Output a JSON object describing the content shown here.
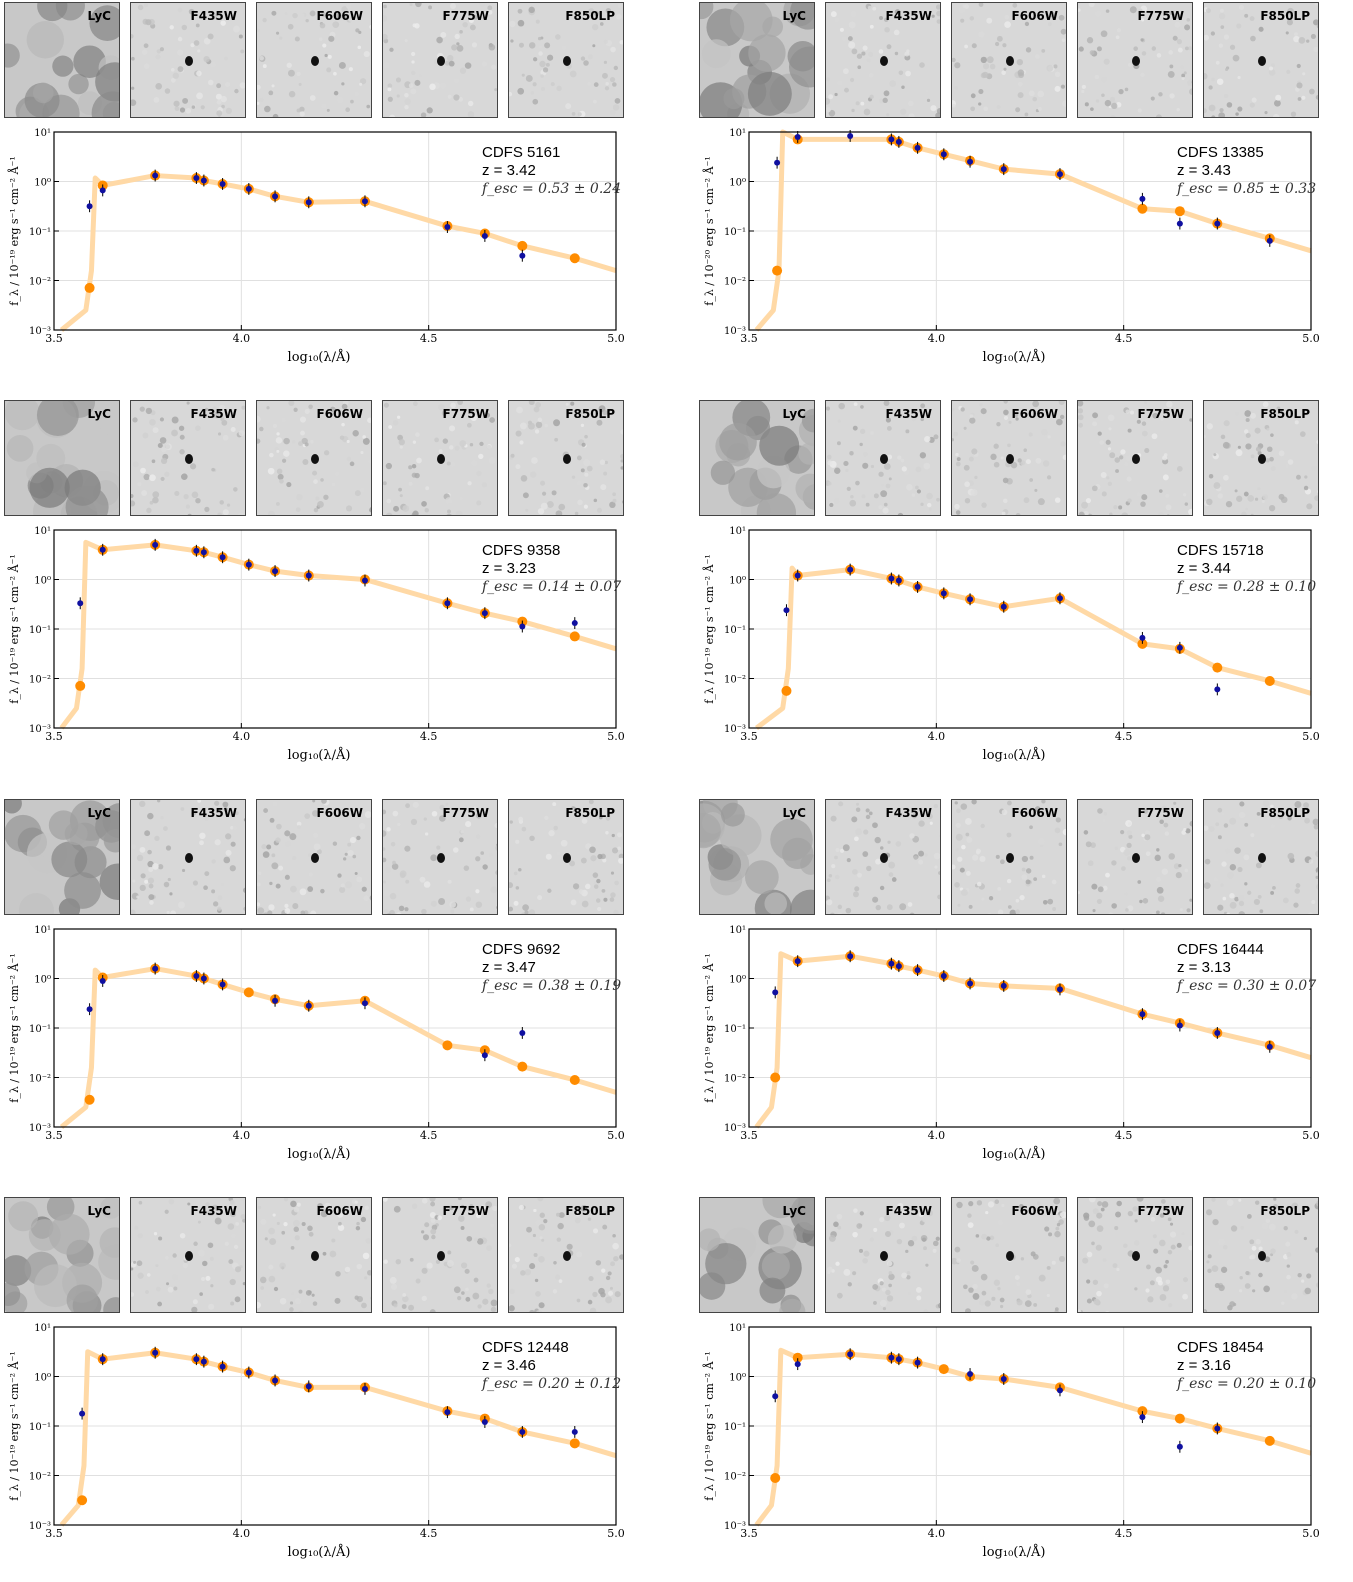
{
  "band_labels": [
    "LyC",
    "F435W",
    "F606W",
    "F775W",
    "F850LP"
  ],
  "axis": {
    "xlabel": "log₁₀(λ/Å)",
    "xticks": [
      "3.5",
      "4.0",
      "4.5",
      "5.0"
    ],
    "yticks": [
      "10¹",
      "10⁰",
      "10⁻¹",
      "10⁻²",
      "10⁻³"
    ]
  },
  "chart_data": [
    {
      "type": "scatter",
      "name": "CDFS 5161",
      "z": "z = 3.42",
      "fesc": "f_esc = 0.53 ± 0.24",
      "ylabel": "f_λ / 10⁻¹⁹ erg s⁻¹ cm⁻² Å⁻¹",
      "xlim": [
        3.5,
        5.0
      ],
      "ylim": [
        -3,
        1
      ],
      "obs": [
        [
          3.595,
          -0.5
        ],
        [
          3.63,
          -0.18
        ],
        [
          3.77,
          0.12
        ],
        [
          3.88,
          0.07
        ],
        [
          3.9,
          0.02
        ],
        [
          3.95,
          -0.05
        ],
        [
          4.02,
          -0.15
        ],
        [
          4.09,
          -0.3
        ],
        [
          4.18,
          -0.42
        ],
        [
          4.33,
          -0.4
        ],
        [
          4.55,
          -0.92
        ],
        [
          4.65,
          -1.1
        ],
        [
          4.75,
          -1.5
        ]
      ],
      "model": [
        [
          3.595,
          -2.15
        ],
        [
          3.63,
          -0.08
        ],
        [
          3.77,
          0.12
        ],
        [
          3.88,
          0.07
        ],
        [
          3.9,
          0.02
        ],
        [
          3.95,
          -0.05
        ],
        [
          4.02,
          -0.15
        ],
        [
          4.09,
          -0.3
        ],
        [
          4.18,
          -0.42
        ],
        [
          4.33,
          -0.4
        ],
        [
          4.55,
          -0.9
        ],
        [
          4.65,
          -1.05
        ],
        [
          4.75,
          -1.3
        ],
        [
          4.89,
          -1.55
        ]
      ]
    },
    {
      "type": "scatter",
      "name": "CDFS 13385",
      "z": "z = 3.43",
      "fesc": "f_esc = 0.85 ± 0.33",
      "ylabel": "f_λ / 10⁻²⁰ erg s⁻¹ cm⁻² Å⁻¹",
      "xlim": [
        3.5,
        5.0
      ],
      "ylim": [
        -3,
        1
      ],
      "obs": [
        [
          3.575,
          0.38
        ],
        [
          3.63,
          0.9
        ],
        [
          3.77,
          0.92
        ],
        [
          3.88,
          0.85
        ],
        [
          3.9,
          0.8
        ],
        [
          3.95,
          0.68
        ],
        [
          4.02,
          0.55
        ],
        [
          4.09,
          0.4
        ],
        [
          4.18,
          0.25
        ],
        [
          4.33,
          0.15
        ],
        [
          4.55,
          -0.35
        ],
        [
          4.65,
          -0.85
        ],
        [
          4.75,
          -0.85
        ],
        [
          4.89,
          -1.2
        ]
      ],
      "model": [
        [
          3.575,
          -1.8
        ],
        [
          3.63,
          0.85
        ],
        [
          3.88,
          0.85
        ],
        [
          3.9,
          0.8
        ],
        [
          3.95,
          0.68
        ],
        [
          4.02,
          0.55
        ],
        [
          4.09,
          0.42
        ],
        [
          4.18,
          0.25
        ],
        [
          4.33,
          0.15
        ],
        [
          4.55,
          -0.55
        ],
        [
          4.65,
          -0.6
        ],
        [
          4.75,
          -0.85
        ],
        [
          4.89,
          -1.15
        ]
      ]
    },
    {
      "type": "scatter",
      "name": "CDFS 9358",
      "z": "z = 3.23",
      "fesc": "f_esc = 0.14 ± 0.07",
      "ylabel": "f_λ / 10⁻¹⁹ erg s⁻¹ cm⁻² Å⁻¹",
      "xlim": [
        3.5,
        5.0
      ],
      "ylim": [
        -3,
        1
      ],
      "obs": [
        [
          3.57,
          -0.48
        ],
        [
          3.63,
          0.6
        ],
        [
          3.77,
          0.7
        ],
        [
          3.88,
          0.58
        ],
        [
          3.9,
          0.55
        ],
        [
          3.95,
          0.45
        ],
        [
          4.02,
          0.3
        ],
        [
          4.09,
          0.17
        ],
        [
          4.18,
          0.08
        ],
        [
          4.33,
          -0.02
        ],
        [
          4.55,
          -0.48
        ],
        [
          4.65,
          -0.68
        ],
        [
          4.75,
          -0.95
        ],
        [
          4.89,
          -0.88
        ]
      ],
      "model": [
        [
          3.57,
          -2.15
        ],
        [
          3.63,
          0.6
        ],
        [
          3.77,
          0.7
        ],
        [
          3.88,
          0.58
        ],
        [
          3.9,
          0.55
        ],
        [
          3.95,
          0.45
        ],
        [
          4.02,
          0.3
        ],
        [
          4.09,
          0.17
        ],
        [
          4.18,
          0.08
        ],
        [
          4.33,
          0.0
        ],
        [
          4.55,
          -0.48
        ],
        [
          4.65,
          -0.68
        ],
        [
          4.75,
          -0.85
        ],
        [
          4.89,
          -1.15
        ]
      ]
    },
    {
      "type": "scatter",
      "name": "CDFS 15718",
      "z": "z = 3.44",
      "fesc": "f_esc = 0.28 ± 0.10",
      "ylabel": "f_λ / 10⁻¹⁹ erg s⁻¹ cm⁻² Å⁻¹",
      "xlim": [
        3.5,
        5.0
      ],
      "ylim": [
        -3,
        1
      ],
      "obs": [
        [
          3.6,
          -0.62
        ],
        [
          3.63,
          0.08
        ],
        [
          3.77,
          0.2
        ],
        [
          3.88,
          0.02
        ],
        [
          3.9,
          -0.02
        ],
        [
          3.95,
          -0.15
        ],
        [
          4.02,
          -0.28
        ],
        [
          4.09,
          -0.4
        ],
        [
          4.18,
          -0.55
        ],
        [
          4.33,
          -0.38
        ],
        [
          4.55,
          -1.18
        ],
        [
          4.65,
          -1.38
        ],
        [
          4.75,
          -2.22
        ]
      ],
      "model": [
        [
          3.6,
          -2.25
        ],
        [
          3.63,
          0.08
        ],
        [
          3.77,
          0.2
        ],
        [
          3.88,
          0.02
        ],
        [
          3.9,
          -0.02
        ],
        [
          3.95,
          -0.15
        ],
        [
          4.02,
          -0.28
        ],
        [
          4.09,
          -0.4
        ],
        [
          4.18,
          -0.55
        ],
        [
          4.33,
          -0.38
        ],
        [
          4.55,
          -1.3
        ],
        [
          4.65,
          -1.4
        ],
        [
          4.75,
          -1.78
        ],
        [
          4.89,
          -2.05
        ]
      ]
    },
    {
      "type": "scatter",
      "name": "CDFS 9692",
      "z": "z = 3.47",
      "fesc": "f_esc = 0.38 ± 0.19",
      "ylabel": "f_λ / 10⁻¹⁹ erg s⁻¹ cm⁻² Å⁻¹",
      "xlim": [
        3.5,
        5.0
      ],
      "ylim": [
        -3,
        1
      ],
      "obs": [
        [
          3.595,
          -0.62
        ],
        [
          3.63,
          -0.05
        ],
        [
          3.77,
          0.2
        ],
        [
          3.88,
          0.05
        ],
        [
          3.9,
          0.0
        ],
        [
          3.95,
          -0.12
        ],
        [
          4.09,
          -0.45
        ],
        [
          4.18,
          -0.55
        ],
        [
          4.33,
          -0.5
        ],
        [
          4.65,
          -1.55
        ],
        [
          4.75,
          -1.1
        ]
      ],
      "model": [
        [
          3.595,
          -2.45
        ],
        [
          3.63,
          0.02
        ],
        [
          3.77,
          0.2
        ],
        [
          3.88,
          0.05
        ],
        [
          3.9,
          0.0
        ],
        [
          3.95,
          -0.12
        ],
        [
          4.02,
          -0.28
        ],
        [
          4.09,
          -0.42
        ],
        [
          4.18,
          -0.55
        ],
        [
          4.33,
          -0.45
        ],
        [
          4.55,
          -1.35
        ],
        [
          4.65,
          -1.45
        ],
        [
          4.75,
          -1.78
        ],
        [
          4.89,
          -2.05
        ]
      ]
    },
    {
      "type": "scatter",
      "name": "CDFS 16444",
      "z": "z = 3.13",
      "fesc": "f_esc = 0.30 ± 0.07",
      "ylabel": "f_λ / 10⁻¹⁹ erg s⁻¹ cm⁻² Å⁻¹",
      "xlim": [
        3.5,
        5.0
      ],
      "ylim": [
        -3,
        1
      ],
      "obs": [
        [
          3.57,
          -0.28
        ],
        [
          3.63,
          0.35
        ],
        [
          3.77,
          0.45
        ],
        [
          3.88,
          0.3
        ],
        [
          3.9,
          0.25
        ],
        [
          3.95,
          0.17
        ],
        [
          4.02,
          0.05
        ],
        [
          4.09,
          -0.1
        ],
        [
          4.18,
          -0.15
        ],
        [
          4.33,
          -0.22
        ],
        [
          4.55,
          -0.72
        ],
        [
          4.65,
          -0.95
        ],
        [
          4.75,
          -1.1
        ],
        [
          4.89,
          -1.38
        ]
      ],
      "model": [
        [
          3.57,
          -2.0
        ],
        [
          3.63,
          0.35
        ],
        [
          3.77,
          0.45
        ],
        [
          3.88,
          0.3
        ],
        [
          3.9,
          0.25
        ],
        [
          3.95,
          0.17
        ],
        [
          4.02,
          0.05
        ],
        [
          4.09,
          -0.1
        ],
        [
          4.18,
          -0.15
        ],
        [
          4.33,
          -0.2
        ],
        [
          4.55,
          -0.72
        ],
        [
          4.65,
          -0.9
        ],
        [
          4.75,
          -1.1
        ],
        [
          4.89,
          -1.35
        ]
      ]
    },
    {
      "type": "scatter",
      "name": "CDFS 12448",
      "z": "z = 3.46",
      "fesc": "f_esc = 0.20 ± 0.12",
      "ylabel": "f_λ / 10⁻¹⁹ erg s⁻¹ cm⁻² Å⁻¹",
      "xlim": [
        3.5,
        5.0
      ],
      "ylim": [
        -3,
        1
      ],
      "obs": [
        [
          3.575,
          -0.75
        ],
        [
          3.63,
          0.35
        ],
        [
          3.77,
          0.48
        ],
        [
          3.88,
          0.35
        ],
        [
          3.9,
          0.3
        ],
        [
          3.95,
          0.2
        ],
        [
          4.02,
          0.08
        ],
        [
          4.09,
          -0.08
        ],
        [
          4.18,
          -0.2
        ],
        [
          4.33,
          -0.25
        ],
        [
          4.55,
          -0.72
        ],
        [
          4.65,
          -0.92
        ],
        [
          4.75,
          -1.12
        ],
        [
          4.89,
          -1.12
        ]
      ],
      "model": [
        [
          3.575,
          -2.5
        ],
        [
          3.63,
          0.35
        ],
        [
          3.77,
          0.48
        ],
        [
          3.88,
          0.35
        ],
        [
          3.9,
          0.3
        ],
        [
          3.95,
          0.2
        ],
        [
          4.02,
          0.08
        ],
        [
          4.09,
          -0.08
        ],
        [
          4.18,
          -0.22
        ],
        [
          4.33,
          -0.22
        ],
        [
          4.55,
          -0.7
        ],
        [
          4.65,
          -0.85
        ],
        [
          4.75,
          -1.12
        ],
        [
          4.89,
          -1.35
        ]
      ]
    },
    {
      "type": "scatter",
      "name": "CDFS 18454",
      "z": "z = 3.16",
      "fesc": "f_esc = 0.20 ± 0.10",
      "ylabel": "f_λ / 10⁻¹⁹ erg s⁻¹ cm⁻² Å⁻¹",
      "xlim": [
        3.5,
        5.0
      ],
      "ylim": [
        -3,
        1
      ],
      "obs": [
        [
          3.57,
          -0.4
        ],
        [
          3.63,
          0.25
        ],
        [
          3.77,
          0.45
        ],
        [
          3.88,
          0.38
        ],
        [
          3.9,
          0.35
        ],
        [
          3.95,
          0.28
        ],
        [
          4.09,
          0.05
        ],
        [
          4.18,
          -0.05
        ],
        [
          4.33,
          -0.28
        ],
        [
          4.55,
          -0.82
        ],
        [
          4.65,
          -1.42
        ],
        [
          4.75,
          -1.05
        ]
      ],
      "model": [
        [
          3.57,
          -2.05
        ],
        [
          3.63,
          0.38
        ],
        [
          3.77,
          0.45
        ],
        [
          3.88,
          0.38
        ],
        [
          3.9,
          0.35
        ],
        [
          3.95,
          0.28
        ],
        [
          4.02,
          0.15
        ],
        [
          4.09,
          0.0
        ],
        [
          4.18,
          -0.05
        ],
        [
          4.33,
          -0.22
        ],
        [
          4.55,
          -0.7
        ],
        [
          4.65,
          -0.85
        ],
        [
          4.75,
          -1.05
        ],
        [
          4.89,
          -1.3
        ]
      ]
    }
  ],
  "colors": {
    "observed": "#1010a0",
    "model": "#ff8c00",
    "spectrum": "#ffd9a6"
  }
}
